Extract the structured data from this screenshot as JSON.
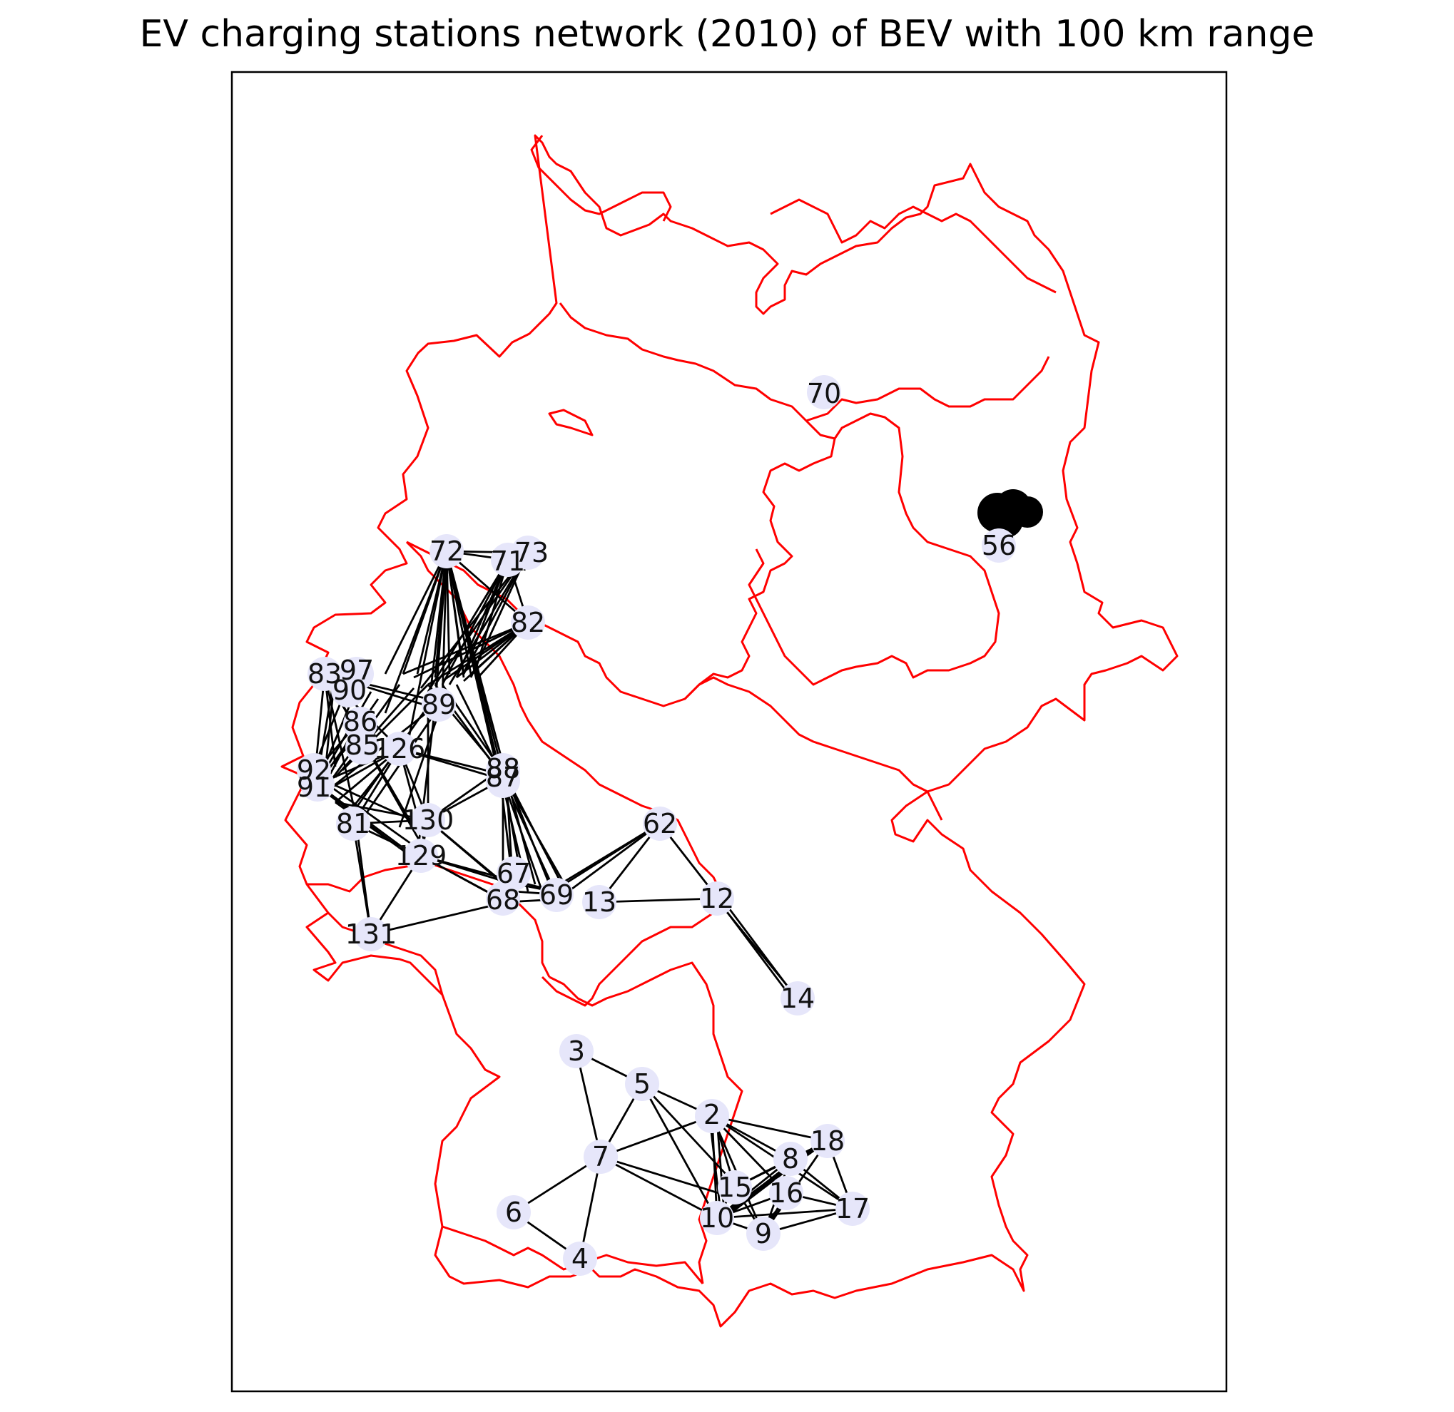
{
  "title": "EV charging stations network (2010) of BEV with 100 km range",
  "colors": {
    "border": "#ff0000",
    "edge": "#000000",
    "node": "#e6e6fa",
    "frame": "#000000",
    "label": "#111111"
  },
  "nodes": [
    {
      "label": "70"
    },
    {
      "label": "56"
    },
    {
      "label": "72"
    },
    {
      "label": "71"
    },
    {
      "label": "73"
    },
    {
      "label": "82"
    },
    {
      "label": "83"
    },
    {
      "label": "97"
    },
    {
      "label": "90"
    },
    {
      "label": "89"
    },
    {
      "label": "86"
    },
    {
      "label": "85"
    },
    {
      "label": "126"
    },
    {
      "label": "92"
    },
    {
      "label": "91"
    },
    {
      "label": "88"
    },
    {
      "label": "87"
    },
    {
      "label": "130"
    },
    {
      "label": "81"
    },
    {
      "label": "129"
    },
    {
      "label": "131"
    },
    {
      "label": "67"
    },
    {
      "label": "68"
    },
    {
      "label": "69"
    },
    {
      "label": "13"
    },
    {
      "label": "62"
    },
    {
      "label": "12"
    },
    {
      "label": "14"
    },
    {
      "label": "3"
    },
    {
      "label": "5"
    },
    {
      "label": "2"
    },
    {
      "label": "18"
    },
    {
      "label": "7"
    },
    {
      "label": "8"
    },
    {
      "label": "15"
    },
    {
      "label": "16"
    },
    {
      "label": "17"
    },
    {
      "label": "6"
    },
    {
      "label": "10"
    },
    {
      "label": "9"
    },
    {
      "label": "4"
    }
  ]
}
